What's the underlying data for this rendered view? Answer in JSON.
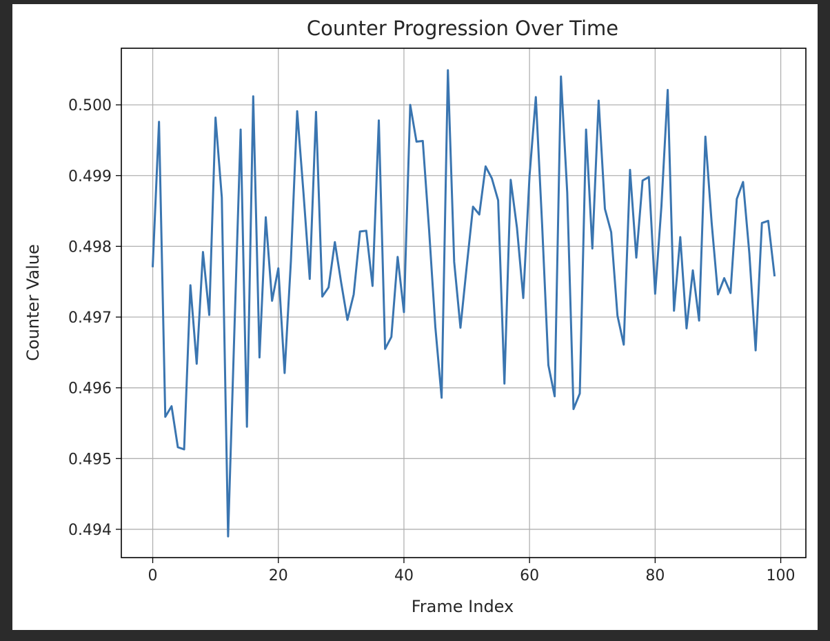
{
  "chart_data": {
    "type": "line",
    "title": "Counter Progression Over Time",
    "xlabel": "Frame Index",
    "ylabel": "Counter Value",
    "xlim": [
      -5,
      104
    ],
    "ylim": [
      0.4936,
      0.5008
    ],
    "xticks": [
      0,
      20,
      40,
      60,
      80,
      100
    ],
    "yticks": [
      0.494,
      0.495,
      0.496,
      0.497,
      0.498,
      0.499,
      0.5
    ],
    "ytick_labels": [
      "0.494",
      "0.495",
      "0.496",
      "0.497",
      "0.498",
      "0.499",
      "0.500"
    ],
    "grid": true,
    "series": [
      {
        "color": "#3a75b0",
        "x": [
          0,
          1,
          2,
          3,
          4,
          5,
          6,
          7,
          8,
          9,
          10,
          11,
          12,
          13,
          14,
          15,
          16,
          17,
          18,
          19,
          20,
          21,
          22,
          23,
          24,
          25,
          26,
          27,
          28,
          29,
          30,
          31,
          32,
          33,
          34,
          35,
          36,
          37,
          38,
          39,
          40,
          41,
          42,
          43,
          44,
          45,
          46,
          47,
          48,
          49,
          50,
          51,
          52,
          53,
          54,
          55,
          56,
          57,
          58,
          59,
          60,
          61,
          62,
          63,
          64,
          65,
          66,
          67,
          68,
          69,
          70,
          71,
          72,
          73,
          74,
          75,
          76,
          77,
          78,
          79,
          80,
          81,
          82,
          83,
          84,
          85,
          86,
          87,
          88,
          89,
          90,
          91,
          92,
          93,
          94,
          95,
          96,
          97,
          98,
          99
        ],
        "values": [
          0.49772,
          0.49976,
          0.49559,
          0.49574,
          0.49516,
          0.49513,
          0.49745,
          0.49634,
          0.49792,
          0.49703,
          0.49982,
          0.49869,
          0.4939,
          0.4968,
          0.49965,
          0.49545,
          0.50012,
          0.49643,
          0.49841,
          0.49723,
          0.49769,
          0.49621,
          0.49779,
          0.49991,
          0.49876,
          0.49754,
          0.4999,
          0.49729,
          0.49742,
          0.49806,
          0.49749,
          0.49696,
          0.49732,
          0.49821,
          0.49822,
          0.49744,
          0.49978,
          0.49655,
          0.49672,
          0.49785,
          0.49707,
          0.5,
          0.49948,
          0.49949,
          0.49824,
          0.49686,
          0.49586,
          0.50049,
          0.49778,
          0.49685,
          0.49772,
          0.49856,
          0.49845,
          0.49913,
          0.49896,
          0.49865,
          0.49606,
          0.49894,
          0.49826,
          0.49727,
          0.499,
          0.50011,
          0.49831,
          0.49632,
          0.49588,
          0.5004,
          0.49876,
          0.4957,
          0.49592,
          0.49965,
          0.49797,
          0.50006,
          0.49853,
          0.4982,
          0.49702,
          0.49661,
          0.49908,
          0.49784,
          0.49893,
          0.49898,
          0.49733,
          0.49857,
          0.50021,
          0.49709,
          0.49813,
          0.49684,
          0.49766,
          0.49695,
          0.49955,
          0.49833,
          0.49732,
          0.49755,
          0.49734,
          0.49867,
          0.49891,
          0.4979,
          0.49653,
          0.49833,
          0.49836,
          0.49759
        ]
      }
    ]
  }
}
